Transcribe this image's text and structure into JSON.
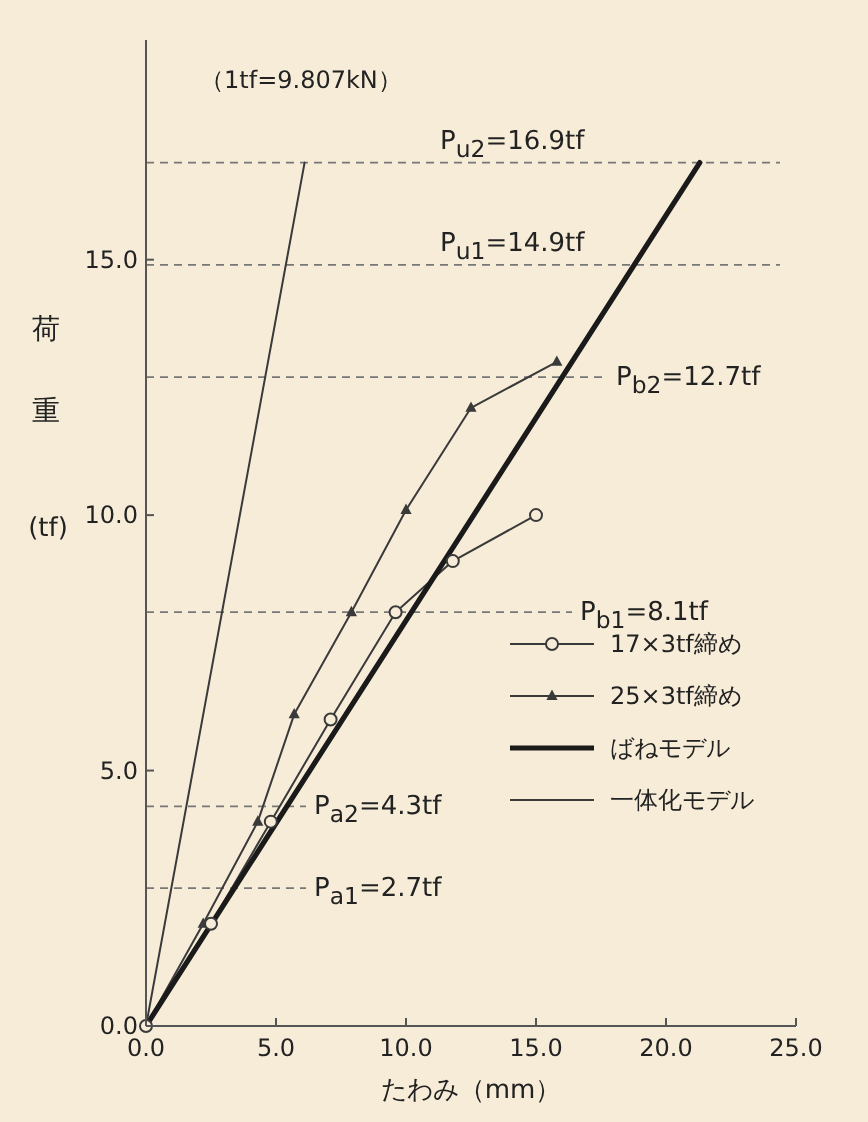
{
  "chart_data": {
    "type": "line",
    "xlabel": "たわみ（mm）",
    "ylabel": "荷重",
    "xlim": [
      0,
      25
    ],
    "ylim": [
      0,
      19.3
    ],
    "xticks": [
      {
        "value": 0,
        "label": "0.0"
      },
      {
        "value": 5,
        "label": "5.0"
      },
      {
        "value": 10,
        "label": "10.0"
      },
      {
        "value": 15,
        "label": "15.0"
      },
      {
        "value": 20,
        "label": "20.0"
      },
      {
        "value": 25,
        "label": "25.0"
      }
    ],
    "yticks": [
      {
        "value": 0,
        "label": "0.0"
      },
      {
        "value": 5,
        "label": "5.0"
      },
      {
        "value": 10,
        "label": "10.0"
      },
      {
        "value": 15,
        "label": "15.0"
      }
    ],
    "grid": false,
    "legend": "bottom right",
    "series": [
      {
        "name": "17×3tf締め",
        "color": "#3a3a3a",
        "marker": "circle",
        "x": [
          0,
          2.5,
          4.8,
          7.1,
          9.6,
          11.8,
          15.0
        ],
        "values": [
          0,
          2.0,
          4.0,
          6.0,
          8.1,
          9.1,
          10.0
        ]
      },
      {
        "name": "25×3tf締め",
        "color": "#3a3a3a",
        "marker": "triangle",
        "x": [
          0,
          2.2,
          4.3,
          5.7,
          7.9,
          10.0,
          12.5,
          15.8
        ],
        "values": [
          0,
          2.0,
          4.0,
          6.1,
          8.1,
          10.1,
          12.1,
          13.0
        ]
      },
      {
        "name": "ばねモデル",
        "color": "#1a1a1a",
        "marker": "none",
        "x": [
          0,
          21.3
        ],
        "values": [
          0,
          16.9
        ]
      },
      {
        "name": "一体化モデル",
        "color": "#3a3a3a",
        "marker": "none",
        "x": [
          0,
          6.1
        ],
        "values": [
          0,
          16.9
        ]
      }
    ],
    "ref_lines": [
      {
        "axis": "y",
        "value": 16.9,
        "label": "P$_{u2}$=16.9tf",
        "color": "#777777",
        "line_style": "dashed"
      },
      {
        "axis": "y",
        "value": 14.9,
        "label": "P$_{u1}$=14.9tf",
        "color": "#777777",
        "line_style": "dashed"
      },
      {
        "axis": "y",
        "value": 12.7,
        "label": "P$_{b2}$=12.7tf",
        "color": "#777777",
        "line_style": "dashed"
      },
      {
        "axis": "y",
        "value": 8.1,
        "label": "P$_{b1}$=8.1tf",
        "color": "#777777",
        "line_style": "dashed"
      },
      {
        "axis": "y",
        "value": 4.3,
        "label": "P$_{a2}$=4.3tf",
        "color": "#777777",
        "line_style": "dashed"
      },
      {
        "axis": "y",
        "value": 2.7,
        "label": "P$_{a1}$=2.7tf",
        "color": "#777777",
        "line_style": "dashed"
      }
    ],
    "annotations": [
      "（1tf=9.807kN）",
      "(tf)"
    ]
  }
}
